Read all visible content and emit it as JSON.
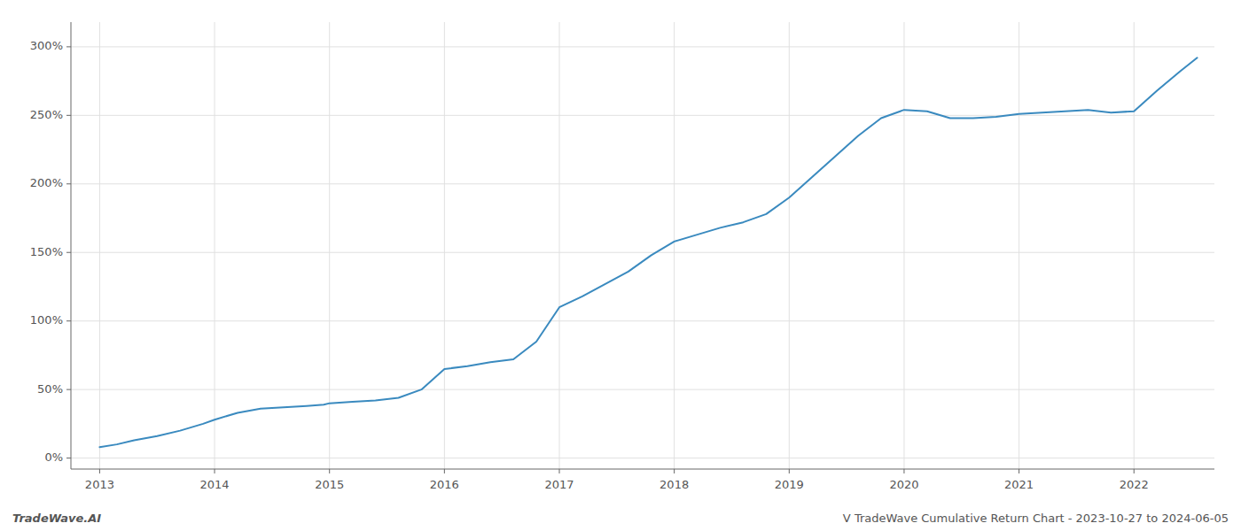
{
  "chart_data": {
    "type": "line",
    "annotations": [
      "TradeWave.AI",
      "V TradeWave Cumulative Return Chart - 2023-10-27 to 2024-06-05"
    ],
    "color": "#3a8abf",
    "x": [
      2013.0,
      2013.15,
      2013.3,
      2013.5,
      2013.7,
      2013.9,
      2014.0,
      2014.2,
      2014.4,
      2014.6,
      2014.8,
      2014.95,
      2015.0,
      2015.2,
      2015.4,
      2015.6,
      2015.8,
      2016.0,
      2016.2,
      2016.4,
      2016.6,
      2016.8,
      2017.0,
      2017.2,
      2017.4,
      2017.6,
      2017.8,
      2018.0,
      2018.2,
      2018.4,
      2018.6,
      2018.8,
      2019.0,
      2019.2,
      2019.4,
      2019.6,
      2019.8,
      2020.0,
      2020.2,
      2020.4,
      2020.6,
      2020.8,
      2021.0,
      2021.2,
      2021.4,
      2021.6,
      2021.8,
      2022.0,
      2022.2,
      2022.4,
      2022.55
    ],
    "values": [
      8,
      10,
      13,
      16,
      20,
      25,
      28,
      33,
      36,
      37,
      38,
      39,
      40,
      41,
      42,
      44,
      50,
      65,
      67,
      70,
      72,
      85,
      110,
      118,
      127,
      136,
      148,
      158,
      163,
      168,
      172,
      178,
      190,
      205,
      220,
      235,
      248,
      254,
      253,
      248,
      248,
      249,
      251,
      252,
      253,
      254,
      252,
      253,
      268,
      282,
      292
    ],
    "xlim": [
      2012.75,
      2022.7
    ],
    "ylim": [
      -8,
      318
    ],
    "xticks": [
      2013,
      2014,
      2015,
      2016,
      2017,
      2018,
      2019,
      2020,
      2021,
      2022
    ],
    "yticks": [
      {
        "value": 0,
        "label": "0%"
      },
      {
        "value": 50,
        "label": "50%"
      },
      {
        "value": 100,
        "label": "100%"
      },
      {
        "value": 150,
        "label": "150%"
      },
      {
        "value": 200,
        "label": "200%"
      },
      {
        "value": 250,
        "label": "250%"
      },
      {
        "value": 300,
        "label": "300%"
      }
    ],
    "grid": true
  }
}
